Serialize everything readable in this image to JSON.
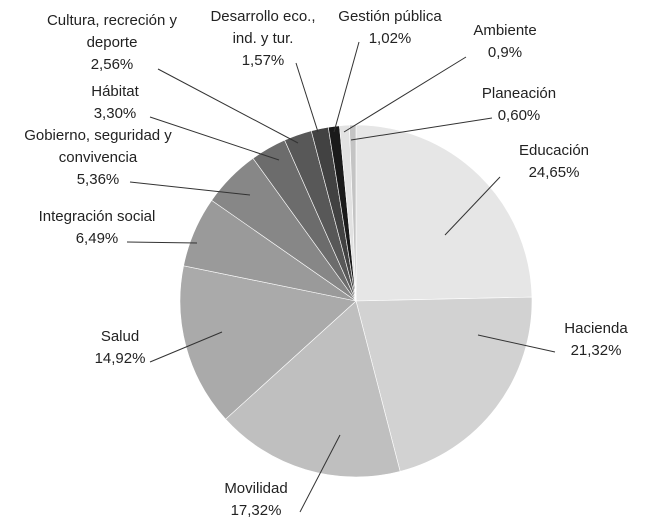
{
  "chart_data": {
    "type": "pie",
    "categories": [
      "Educación",
      "Hacienda",
      "Movilidad",
      "Salud",
      "Integración social",
      "Gobierno, seguridad y convivencia",
      "Hábitat",
      "Cultura, recreción y deporte",
      "Desarrollo eco., ind. y tur.",
      "Gestión pública",
      "Ambiente",
      "Planeación"
    ],
    "values": [
      24.65,
      21.32,
      17.32,
      14.92,
      6.49,
      5.36,
      3.3,
      2.56,
      1.57,
      1.02,
      0.9,
      0.6
    ],
    "value_labels": [
      "24,65%",
      "21,32%",
      "17,32%",
      "14,92%",
      "6,49%",
      "5,36%",
      "3,30%",
      "2,56%",
      "1,57%",
      "1,02%",
      "0,9%",
      "0,60%"
    ],
    "colors": [
      "#e6e6e6",
      "#d2d2d2",
      "#bfbfbf",
      "#aaaaaa",
      "#9a9a9a",
      "#878787",
      "#6c6c6c",
      "#585858",
      "#424242",
      "#1a1a1a",
      "#e2e2e2",
      "#c4c4c4"
    ]
  }
}
